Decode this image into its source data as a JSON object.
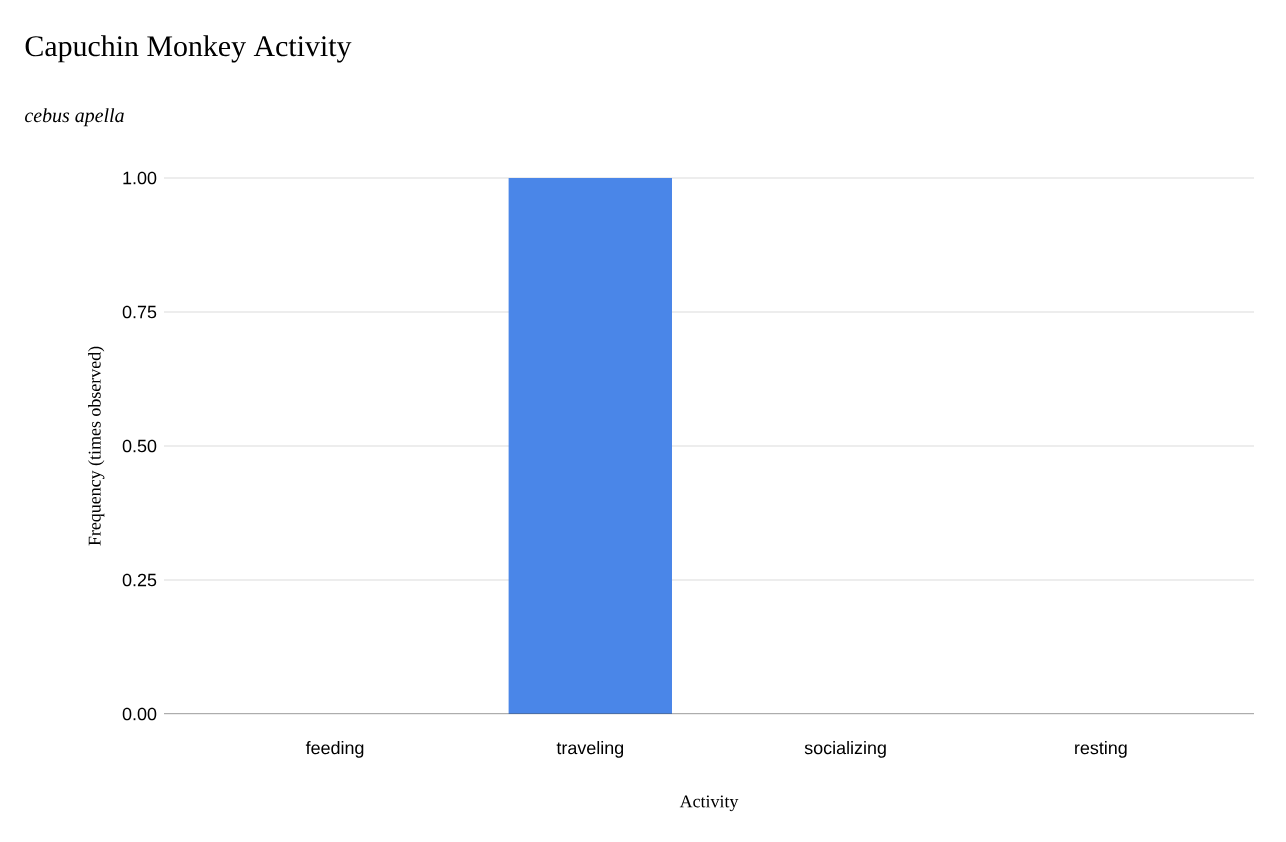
{
  "chart_data": {
    "type": "bar",
    "title": "Capuchin Monkey Activity",
    "subtitle": "*cebus apella*",
    "xlabel": "Activity",
    "ylabel": "Frequency (times observed)",
    "categories": [
      "feeding",
      "traveling",
      "socializing",
      "resting"
    ],
    "values": [
      0,
      1,
      0,
      0
    ],
    "color": "#4a86e8",
    "ylim": [
      0,
      1
    ],
    "yticks": [
      {
        "value": 0,
        "label": "0.00"
      },
      {
        "value": 0.25,
        "label": "0.25"
      },
      {
        "value": 0.5,
        "label": "0.50"
      },
      {
        "value": 0.75,
        "label": "0.75"
      },
      {
        "value": 1,
        "label": "1.00"
      }
    ],
    "grid": "y"
  }
}
